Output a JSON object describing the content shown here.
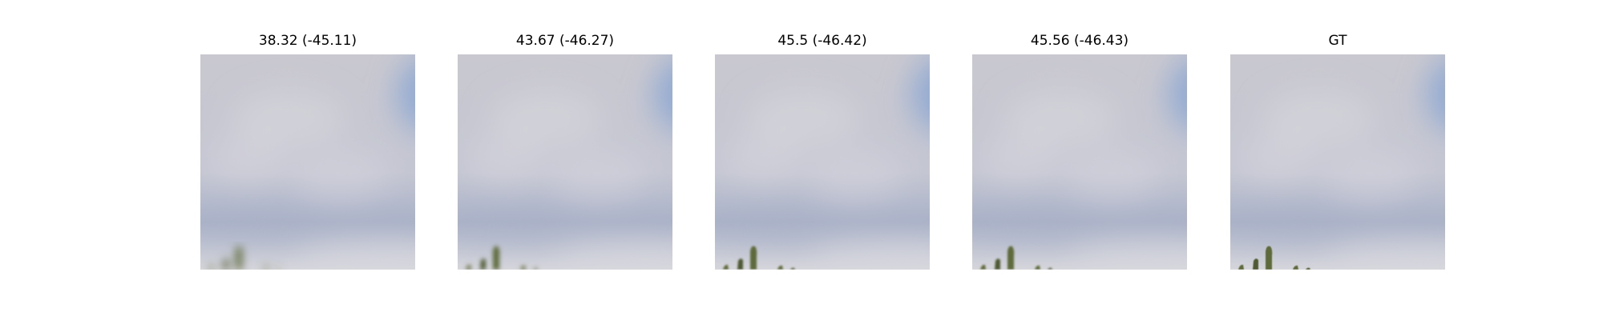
{
  "figure": {
    "panels": [
      {
        "title": "38.32 (-45.11)",
        "blur": 5.2
      },
      {
        "title": "43.67 (-46.27)",
        "blur": 2.6
      },
      {
        "title": "45.5 (-46.42)",
        "blur": 1.4
      },
      {
        "title": "45.56 (-46.43)",
        "blur": 1.3
      },
      {
        "title": "GT",
        "blur": 0.6
      }
    ]
  },
  "scene": {
    "colors": {
      "sky_base": "#c4c6d2",
      "sky_top": "#c9c8d0",
      "blue_patch": "#93aad2",
      "blue_band": "#aab2c8",
      "cloud_light": "#d9d8df",
      "bottom_light": "#d6d6dc",
      "vegetation": "#5f6b3a",
      "vegetation_dark": "#4f5a30"
    }
  }
}
